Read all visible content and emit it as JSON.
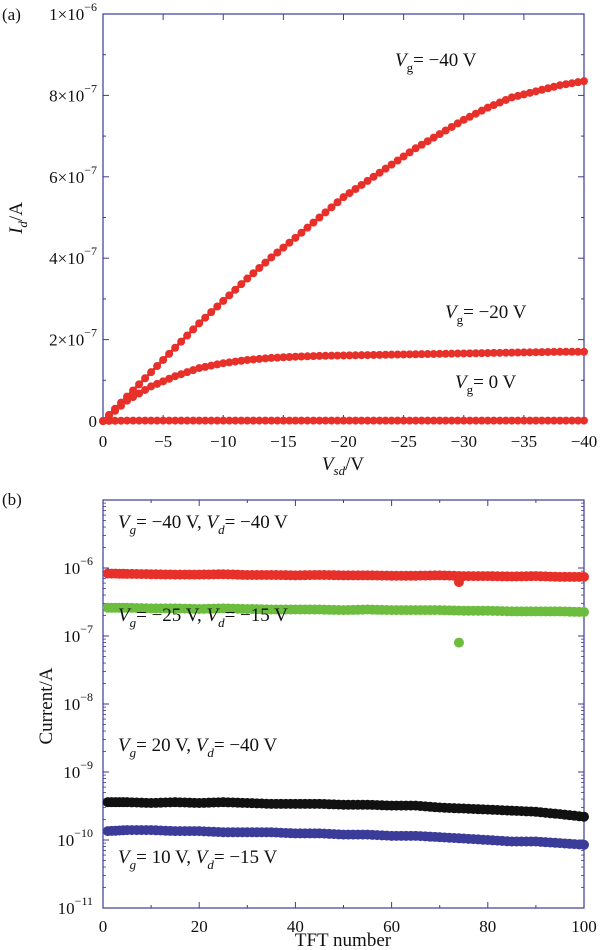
{
  "chart_data": [
    {
      "panel_label": "(a)",
      "type": "scatter",
      "xlabel_main": "V",
      "xlabel_sub": "sd",
      "xlabel_unit": "/V",
      "ylabel_main": "I",
      "ylabel_sub": "d",
      "ylabel_unit": "/A",
      "xlim": [
        0,
        -40
      ],
      "ylim": [
        0,
        1e-06
      ],
      "x_ticks": [
        {
          "v": 0,
          "label": "0"
        },
        {
          "v": -5,
          "label": "−5"
        },
        {
          "v": -10,
          "label": "−10"
        },
        {
          "v": -15,
          "label": "−15"
        },
        {
          "v": -20,
          "label": "−20"
        },
        {
          "v": -25,
          "label": "−25"
        },
        {
          "v": -30,
          "label": "−30"
        },
        {
          "v": -35,
          "label": "−35"
        },
        {
          "v": -40,
          "label": "−40"
        }
      ],
      "y_ticks": [
        {
          "v": 0,
          "mant": "0",
          "exp": ""
        },
        {
          "v": 2e-07,
          "mant": "2×10",
          "exp": "−7"
        },
        {
          "v": 4e-07,
          "mant": "4×10",
          "exp": "−7"
        },
        {
          "v": 6e-07,
          "mant": "6×10",
          "exp": "−7"
        },
        {
          "v": 8e-07,
          "mant": "8×10",
          "exp": "−7"
        },
        {
          "v": 1e-06,
          "mant": "1×10",
          "exp": "−6"
        }
      ],
      "series": [
        {
          "label_pre": "V",
          "label_sub": "g",
          "label_post": "= −40 V",
          "color": "#e8302a",
          "x": [
            0,
            -2,
            -4,
            -6,
            -8,
            -10,
            -12,
            -14,
            -16,
            -18,
            -20,
            -22,
            -24,
            -26,
            -28,
            -30,
            -32,
            -34,
            -36,
            -38,
            -40
          ],
          "y": [
            0,
            6e-08,
            1.2e-07,
            1.8e-07,
            2.4e-07,
            2.95e-07,
            3.5e-07,
            4.02e-07,
            4.5e-07,
            5e-07,
            5.5e-07,
            5.9e-07,
            6.3e-07,
            6.7e-07,
            7.05e-07,
            7.4e-07,
            7.7e-07,
            7.95e-07,
            8.1e-07,
            8.25e-07,
            8.35e-07
          ]
        },
        {
          "label_pre": "V",
          "label_sub": "g",
          "label_post": "= −20 V",
          "color": "#e8302a",
          "x": [
            0,
            -2,
            -4,
            -6,
            -8,
            -10,
            -12,
            -14,
            -16,
            -18,
            -20,
            -22,
            -24,
            -26,
            -28,
            -30,
            -32,
            -34,
            -36,
            -38,
            -40
          ],
          "y": [
            0,
            5e-08,
            8.5e-08,
            1.1e-07,
            1.3e-07,
            1.42e-07,
            1.5e-07,
            1.55e-07,
            1.58e-07,
            1.6e-07,
            1.61e-07,
            1.62e-07,
            1.63e-07,
            1.64e-07,
            1.65e-07,
            1.66e-07,
            1.67e-07,
            1.68e-07,
            1.69e-07,
            1.7e-07,
            1.7e-07
          ]
        },
        {
          "label_pre": "V",
          "label_sub": "g",
          "label_post": "= 0 V",
          "color": "#e8302a",
          "x": [
            0,
            -2,
            -4,
            -6,
            -8,
            -10,
            -12,
            -14,
            -16,
            -18,
            -20,
            -22,
            -24,
            -26,
            -28,
            -30,
            -32,
            -34,
            -36,
            -38,
            -40
          ],
          "y": [
            0,
            1e-09,
            1e-09,
            1e-09,
            1e-09,
            1e-09,
            1e-09,
            1e-09,
            1e-09,
            1e-09,
            1e-09,
            1e-09,
            1e-09,
            1e-09,
            1e-09,
            1e-09,
            1e-09,
            1e-09,
            1e-09,
            1e-09,
            1e-09
          ]
        }
      ]
    },
    {
      "panel_label": "(b)",
      "type": "scatter",
      "xlabel": "TFT number",
      "ylabel": "Current/A",
      "yscale": "log",
      "xlim": [
        0,
        100
      ],
      "ylim": [
        1e-11,
        1e-05
      ],
      "x_ticks": [
        {
          "v": 0,
          "label": "0"
        },
        {
          "v": 20,
          "label": "20"
        },
        {
          "v": 40,
          "label": "40"
        },
        {
          "v": 60,
          "label": "60"
        },
        {
          "v": 80,
          "label": "80"
        },
        {
          "v": 100,
          "label": "100"
        }
      ],
      "y_ticks": [
        {
          "v": 1e-06,
          "mant": "10",
          "exp": "−6"
        },
        {
          "v": 1e-07,
          "mant": "10",
          "exp": "−7"
        },
        {
          "v": 1e-08,
          "mant": "10",
          "exp": "−8"
        },
        {
          "v": 1e-09,
          "mant": "10",
          "exp": "−9"
        },
        {
          "v": 1e-10,
          "mant": "10",
          "exp": "−10"
        },
        {
          "v": 1e-11,
          "mant": "10",
          "exp": "−11"
        }
      ],
      "series": [
        {
          "color": "#e8302a",
          "label": [
            {
              "t": "V",
              "i": true
            },
            {
              "t": "g",
              "sub": true,
              "i": true
            },
            {
              "t": "= −40 V, "
            },
            {
              "t": "V",
              "i": true
            },
            {
              "t": "d",
              "sub": true,
              "i": true
            },
            {
              "t": "= −40 V"
            }
          ],
          "x": [
            1,
            5,
            10,
            15,
            20,
            25,
            30,
            35,
            40,
            45,
            50,
            55,
            60,
            65,
            70,
            74,
            75,
            80,
            85,
            90,
            95,
            100
          ],
          "y": [
            8.3e-07,
            8.2e-07,
            8.1e-07,
            8e-07,
            8e-07,
            8.1e-07,
            7.9e-07,
            7.9e-07,
            7.8e-07,
            7.9e-07,
            7.8e-07,
            7.8e-07,
            7.7e-07,
            7.7e-07,
            7.8e-07,
            6.2e-07,
            7.6e-07,
            7.6e-07,
            7.5e-07,
            7.6e-07,
            7.4e-07,
            7.4e-07
          ]
        },
        {
          "color": "#6cbd3e",
          "label": [
            {
              "t": "V",
              "i": true
            },
            {
              "t": "g",
              "sub": true,
              "i": true
            },
            {
              "t": "= −25 V, "
            },
            {
              "t": "V",
              "i": true
            },
            {
              "t": "d",
              "sub": true,
              "i": true
            },
            {
              "t": "= −15 V"
            }
          ],
          "x": [
            1,
            5,
            10,
            15,
            20,
            25,
            30,
            35,
            40,
            45,
            50,
            55,
            60,
            65,
            70,
            74,
            75,
            80,
            85,
            90,
            95,
            100
          ],
          "y": [
            2.6e-07,
            2.6e-07,
            2.55e-07,
            2.55e-07,
            2.5e-07,
            2.55e-07,
            2.5e-07,
            2.45e-07,
            2.45e-07,
            2.45e-07,
            2.4e-07,
            2.45e-07,
            2.4e-07,
            2.4e-07,
            2.4e-07,
            8e-08,
            2.35e-07,
            2.35e-07,
            2.3e-07,
            2.3e-07,
            2.3e-07,
            2.25e-07
          ]
        },
        {
          "color": "#111111",
          "label": [
            {
              "t": "V",
              "i": true
            },
            {
              "t": "g",
              "sub": true,
              "i": true
            },
            {
              "t": "= 20 V, "
            },
            {
              "t": "V",
              "i": true
            },
            {
              "t": "d",
              "sub": true,
              "i": true
            },
            {
              "t": "= −40 V"
            }
          ],
          "x": [
            1,
            5,
            10,
            15,
            20,
            25,
            30,
            35,
            40,
            45,
            50,
            55,
            60,
            65,
            70,
            75,
            80,
            85,
            90,
            95,
            100
          ],
          "y": [
            3.6e-10,
            3.6e-10,
            3.5e-10,
            3.6e-10,
            3.5e-10,
            3.6e-10,
            3.5e-10,
            3.4e-10,
            3.4e-10,
            3.4e-10,
            3.3e-10,
            3.3e-10,
            3.2e-10,
            3.2e-10,
            3e-10,
            2.9e-10,
            2.8e-10,
            2.7e-10,
            2.6e-10,
            2.4e-10,
            2.2e-10
          ]
        },
        {
          "color": "#3b3b9a",
          "label": [
            {
              "t": "V",
              "i": true
            },
            {
              "t": "g",
              "sub": true,
              "i": true
            },
            {
              "t": "= 10 V, "
            },
            {
              "t": "V",
              "i": true
            },
            {
              "t": "d",
              "sub": true,
              "i": true
            },
            {
              "t": "= −15 V"
            }
          ],
          "x": [
            1,
            5,
            10,
            15,
            20,
            25,
            30,
            35,
            40,
            45,
            50,
            55,
            60,
            65,
            70,
            75,
            80,
            85,
            90,
            95,
            100
          ],
          "y": [
            1.35e-10,
            1.4e-10,
            1.4e-10,
            1.35e-10,
            1.35e-10,
            1.3e-10,
            1.3e-10,
            1.3e-10,
            1.25e-10,
            1.25e-10,
            1.2e-10,
            1.2e-10,
            1.15e-10,
            1.15e-10,
            1.1e-10,
            1.05e-10,
            1e-10,
            9.5e-11,
            9.5e-11,
            9e-11,
            8.5e-11
          ]
        }
      ]
    }
  ]
}
